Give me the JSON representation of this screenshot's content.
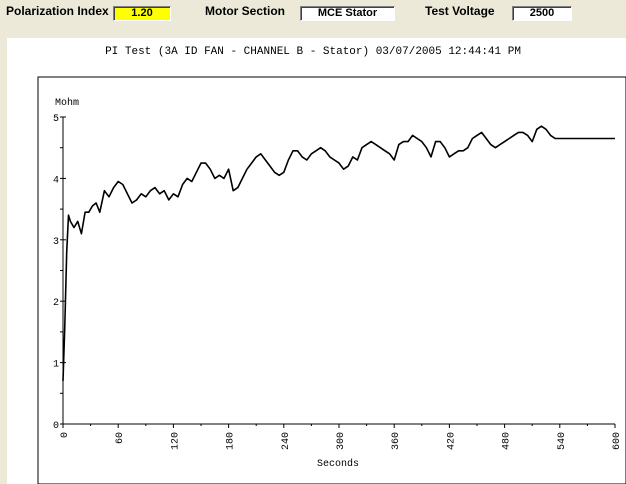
{
  "header": {
    "pi_label": "Polarization Index",
    "pi_value": "1.20",
    "motor_label": "Motor Section",
    "motor_value": "MCE Stator",
    "voltage_label": "Test Voltage",
    "voltage_value": "2500"
  },
  "chart_data": {
    "type": "line",
    "title": "PI Test (3A ID FAN - CHANNEL B - Stator) 03/07/2005 12:44:41 PM",
    "xlabel": "Seconds",
    "ylabel": "Mohm",
    "xlim": [
      0,
      600
    ],
    "ylim": [
      0,
      5
    ],
    "xticks": [
      "0",
      "60",
      "120",
      "180",
      "240",
      "300",
      "360",
      "420",
      "480",
      "540",
      "600"
    ],
    "yticks": [
      "0",
      "1",
      "2",
      "3",
      "4",
      "5"
    ],
    "series": [
      {
        "x": [
          0,
          2,
          4,
          6,
          8,
          12,
          16,
          20,
          24,
          28,
          32,
          36,
          40,
          45,
          50,
          55,
          60,
          65,
          70,
          75,
          80,
          85,
          90,
          95,
          100,
          105,
          110,
          115,
          120,
          125,
          130,
          135,
          140,
          145,
          150,
          155,
          160,
          165,
          170,
          175,
          180,
          185,
          190,
          195,
          200,
          205,
          210,
          215,
          220,
          225,
          230,
          235,
          240,
          245,
          250,
          255,
          260,
          265,
          270,
          275,
          280,
          285,
          290,
          295,
          300,
          305,
          310,
          315,
          320,
          325,
          330,
          335,
          340,
          345,
          350,
          355,
          360,
          365,
          370,
          375,
          380,
          385,
          390,
          395,
          400,
          405,
          410,
          415,
          420,
          425,
          430,
          435,
          440,
          445,
          450,
          455,
          460,
          465,
          470,
          475,
          480,
          485,
          490,
          495,
          500,
          505,
          510,
          515,
          520,
          525,
          530,
          535,
          540,
          545,
          550,
          555,
          560,
          565,
          570,
          575,
          580,
          585,
          590,
          595,
          600
        ],
        "values": [
          0.7,
          1.6,
          2.8,
          3.4,
          3.3,
          3.2,
          3.3,
          3.1,
          3.45,
          3.45,
          3.55,
          3.6,
          3.45,
          3.8,
          3.7,
          3.85,
          3.95,
          3.9,
          3.75,
          3.6,
          3.65,
          3.75,
          3.7,
          3.8,
          3.85,
          3.75,
          3.8,
          3.65,
          3.75,
          3.7,
          3.9,
          4.0,
          3.95,
          4.1,
          4.25,
          4.25,
          4.15,
          4.0,
          4.05,
          4.0,
          4.15,
          3.8,
          3.85,
          4.0,
          4.15,
          4.25,
          4.35,
          4.4,
          4.3,
          4.2,
          4.1,
          4.05,
          4.1,
          4.3,
          4.45,
          4.45,
          4.35,
          4.3,
          4.4,
          4.45,
          4.5,
          4.45,
          4.35,
          4.3,
          4.25,
          4.15,
          4.2,
          4.35,
          4.3,
          4.5,
          4.55,
          4.6,
          4.55,
          4.5,
          4.45,
          4.4,
          4.3,
          4.55,
          4.6,
          4.6,
          4.7,
          4.65,
          4.6,
          4.5,
          4.35,
          4.6,
          4.6,
          4.5,
          4.35,
          4.4,
          4.45,
          4.45,
          4.5,
          4.65,
          4.7,
          4.75,
          4.65,
          4.55,
          4.5,
          4.55,
          4.6,
          4.65,
          4.7,
          4.75,
          4.75,
          4.7,
          4.6,
          4.8,
          4.85,
          4.8,
          4.7,
          4.65,
          4.65,
          4.65,
          4.65,
          4.65,
          4.65,
          4.65,
          4.65,
          4.65,
          4.65,
          4.65,
          4.65,
          4.65,
          4.65
        ]
      }
    ]
  }
}
